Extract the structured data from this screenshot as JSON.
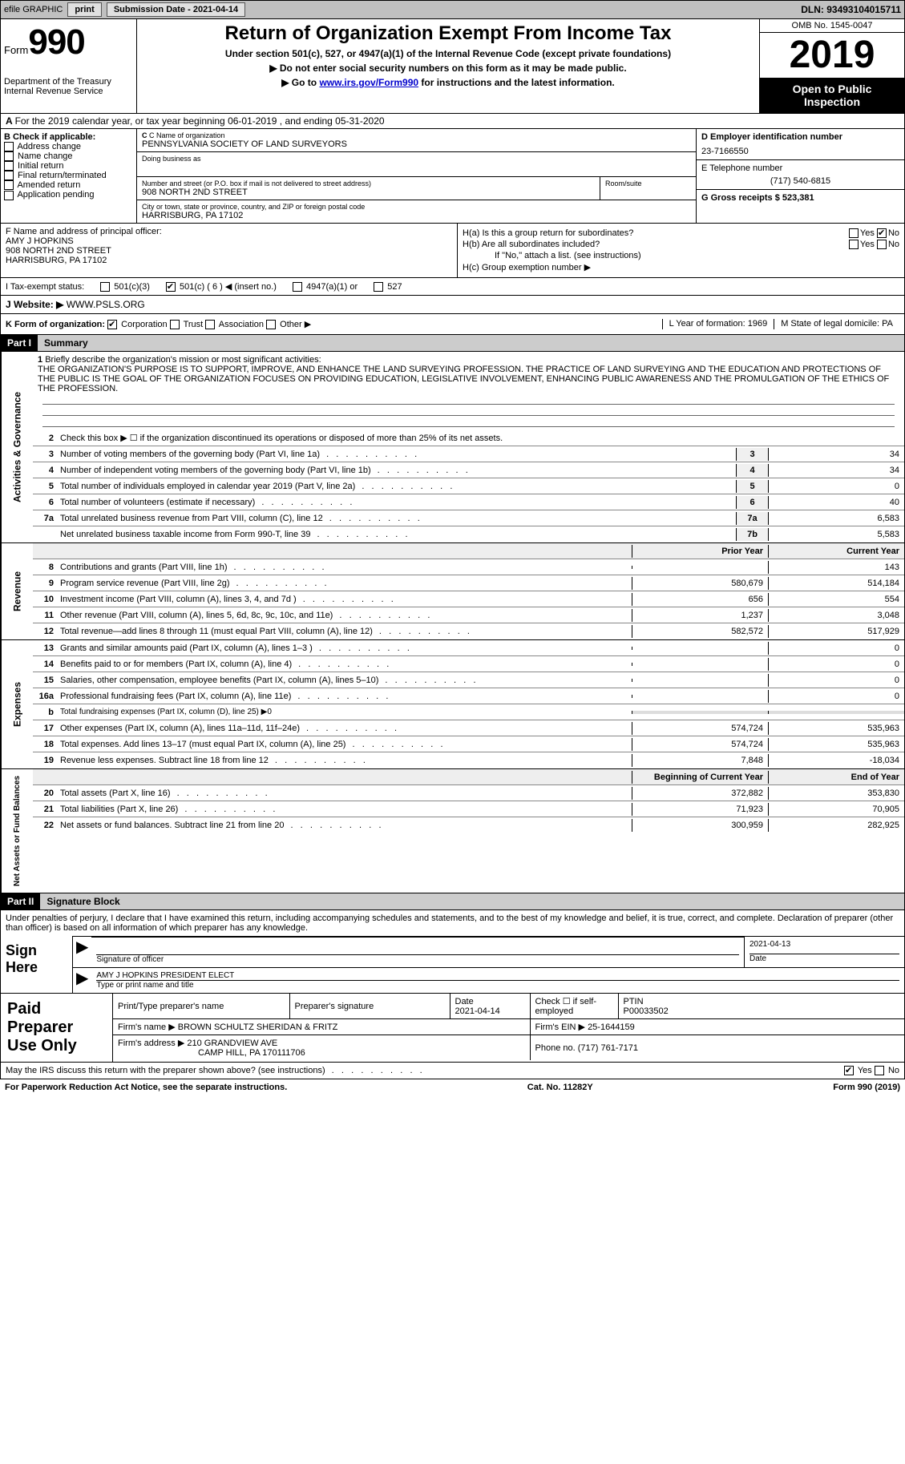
{
  "topbar": {
    "efile_label": "efile GRAPHIC",
    "print_btn": "print",
    "submission_label": "Submission Date - 2021-04-14",
    "dln_label": "DLN: 93493104015711"
  },
  "header": {
    "form_word": "Form",
    "form_num": "990",
    "dept1": "Department of the Treasury",
    "dept2": "Internal Revenue Service",
    "title": "Return of Organization Exempt From Income Tax",
    "subtitle": "Under section 501(c), 527, or 4947(a)(1) of the Internal Revenue Code (except private foundations)",
    "line1": "▶ Do not enter social security numbers on this form as it may be made public.",
    "line2_pre": "▶ Go to ",
    "line2_link": "www.irs.gov/Form990",
    "line2_post": " for instructions and the latest information.",
    "omb": "OMB No. 1545-0047",
    "year": "2019",
    "inspection1": "Open to Public",
    "inspection2": "Inspection"
  },
  "rowA": {
    "pre": "A ",
    "text": "For the 2019 calendar year, or tax year beginning 06-01-2019   , and ending 05-31-2020"
  },
  "colB": {
    "hdr": "B Check if applicable:",
    "items": [
      "Address change",
      "Name change",
      "Initial return",
      "Final return/terminated",
      "Amended return",
      "Application pending"
    ]
  },
  "colC": {
    "name_lbl": "C Name of organization",
    "name": "PENNSYLVANIA SOCIETY OF LAND SURVEYORS",
    "dba_lbl": "Doing business as",
    "addr_lbl": "Number and street (or P.O. box if mail is not delivered to street address)",
    "addr": "908 NORTH 2ND STREET",
    "room_lbl": "Room/suite",
    "city_lbl": "City or town, state or province, country, and ZIP or foreign postal code",
    "city": "HARRISBURG, PA  17102"
  },
  "colD": {
    "ein_lbl": "D Employer identification number",
    "ein": "23-7166550",
    "phone_lbl": "E Telephone number",
    "phone": "(717) 540-6815",
    "gross_lbl": "G Gross receipts $ 523,381"
  },
  "rowF": {
    "lbl": "F  Name and address of principal officer:",
    "name": "AMY J HOPKINS",
    "addr1": "908 NORTH 2ND STREET",
    "addr2": "HARRISBURG, PA  17102"
  },
  "rowH": {
    "ha": "H(a)  Is this a group return for subordinates?",
    "hb": "H(b)  Are all subordinates included?",
    "hb_note": "If \"No,\" attach a list. (see instructions)",
    "hc": "H(c)  Group exemption number ▶",
    "yes": "Yes",
    "no": "No"
  },
  "rowI": {
    "lbl": "I    Tax-exempt status:",
    "o1": "501(c)(3)",
    "o2": "501(c) ( 6 ) ◀ (insert no.)",
    "o3": "4947(a)(1) or",
    "o4": "527"
  },
  "rowJ": {
    "lbl": "J   Website: ▶ ",
    "val": "WWW.PSLS.ORG"
  },
  "rowK": {
    "lbl": "K Form of organization:",
    "o1": "Corporation",
    "o2": "Trust",
    "o3": "Association",
    "o4": "Other ▶",
    "l_lbl": "L Year of formation: 1969",
    "m_lbl": "M State of legal domicile: PA"
  },
  "part1": {
    "hdr": "Part I",
    "title": "Summary"
  },
  "brief": {
    "q1": "Briefly describe the organization's mission or most significant activities:",
    "text": "THE ORGANIZATION'S PURPOSE IS TO SUPPORT, IMPROVE, AND ENHANCE THE LAND SURVEYING PROFESSION. THE PRACTICE OF LAND SURVEYING AND THE EDUCATION AND PROTECTIONS OF THE PUBLIC IS THE GOAL OF THE ORGANIZATION FOCUSES ON PROVIDING EDUCATION, LEGISLATIVE INVOLVEMENT, ENHANCING PUBLIC AWARENESS AND THE PROMULGATION OF THE ETHICS OF THE PROFESSION.",
    "q2": "Check this box ▶ ☐  if the organization discontinued its operations or disposed of more than 25% of its net assets."
  },
  "gov_lines": [
    {
      "n": "3",
      "d": "Number of voting members of the governing body (Part VI, line 1a)",
      "c": "3",
      "v": "34"
    },
    {
      "n": "4",
      "d": "Number of independent voting members of the governing body (Part VI, line 1b)",
      "c": "4",
      "v": "34"
    },
    {
      "n": "5",
      "d": "Total number of individuals employed in calendar year 2019 (Part V, line 2a)",
      "c": "5",
      "v": "0"
    },
    {
      "n": "6",
      "d": "Total number of volunteers (estimate if necessary)",
      "c": "6",
      "v": "40"
    },
    {
      "n": "7a",
      "d": "Total unrelated business revenue from Part VIII, column (C), line 12",
      "c": "7a",
      "v": "6,583"
    },
    {
      "n": "",
      "d": "Net unrelated business taxable income from Form 990-T, line 39",
      "c": "7b",
      "v": "5,583"
    }
  ],
  "col_hdrs": {
    "prior": "Prior Year",
    "current": "Current Year"
  },
  "rev_lines": [
    {
      "n": "8",
      "d": "Contributions and grants (Part VIII, line 1h)",
      "p": "",
      "c": "143"
    },
    {
      "n": "9",
      "d": "Program service revenue (Part VIII, line 2g)",
      "p": "580,679",
      "c": "514,184"
    },
    {
      "n": "10",
      "d": "Investment income (Part VIII, column (A), lines 3, 4, and 7d )",
      "p": "656",
      "c": "554"
    },
    {
      "n": "11",
      "d": "Other revenue (Part VIII, column (A), lines 5, 6d, 8c, 9c, 10c, and 11e)",
      "p": "1,237",
      "c": "3,048"
    },
    {
      "n": "12",
      "d": "Total revenue—add lines 8 through 11 (must equal Part VIII, column (A), line 12)",
      "p": "582,572",
      "c": "517,929"
    }
  ],
  "exp_lines": [
    {
      "n": "13",
      "d": "Grants and similar amounts paid (Part IX, column (A), lines 1–3 )",
      "p": "",
      "c": "0"
    },
    {
      "n": "14",
      "d": "Benefits paid to or for members (Part IX, column (A), line 4)",
      "p": "",
      "c": "0"
    },
    {
      "n": "15",
      "d": "Salaries, other compensation, employee benefits (Part IX, column (A), lines 5–10)",
      "p": "",
      "c": "0"
    },
    {
      "n": "16a",
      "d": "Professional fundraising fees (Part IX, column (A), line 11e)",
      "p": "",
      "c": "0"
    },
    {
      "n": "b",
      "d": "Total fundraising expenses (Part IX, column (D), line 25) ▶0",
      "p": "",
      "c": ""
    },
    {
      "n": "17",
      "d": "Other expenses (Part IX, column (A), lines 11a–11d, 11f–24e)",
      "p": "574,724",
      "c": "535,963"
    },
    {
      "n": "18",
      "d": "Total expenses. Add lines 13–17 (must equal Part IX, column (A), line 25)",
      "p": "574,724",
      "c": "535,963"
    },
    {
      "n": "19",
      "d": "Revenue less expenses. Subtract line 18 from line 12",
      "p": "7,848",
      "c": "-18,034"
    }
  ],
  "na_hdr": {
    "b": "Beginning of Current Year",
    "e": "End of Year"
  },
  "na_lines": [
    {
      "n": "20",
      "d": "Total assets (Part X, line 16)",
      "p": "372,882",
      "c": "353,830"
    },
    {
      "n": "21",
      "d": "Total liabilities (Part X, line 26)",
      "p": "71,923",
      "c": "70,905"
    },
    {
      "n": "22",
      "d": "Net assets or fund balances. Subtract line 21 from line 20",
      "p": "300,959",
      "c": "282,925"
    }
  ],
  "part2": {
    "hdr": "Part II",
    "title": "Signature Block"
  },
  "sig": {
    "decl": "Under penalties of perjury, I declare that I have examined this return, including accompanying schedules and statements, and to the best of my knowledge and belief, it is true, correct, and complete. Declaration of preparer (other than officer) is based on all information of which preparer has any knowledge.",
    "sign_here": "Sign Here",
    "sig_lbl": "Signature of officer",
    "date_lbl": "Date",
    "date": "2021-04-13",
    "typed": "AMY J HOPKINS PRESIDENT ELECT",
    "typed_lbl": "Type or print name and title"
  },
  "paid": {
    "hdr": "Paid Preparer Use Only",
    "h1": "Print/Type preparer's name",
    "h2": "Preparer's signature",
    "h3_l": "Date",
    "h3": "2021-04-14",
    "h4": "Check ☐ if self-employed",
    "h5_l": "PTIN",
    "h5": "P00033502",
    "firm_lbl": "Firm's name    ▶",
    "firm": "BROWN SCHULTZ SHERIDAN & FRITZ",
    "ein_lbl": "Firm's EIN ▶",
    "ein": "25-1644159",
    "addr_lbl": "Firm's address ▶",
    "addr1": "210 GRANDVIEW AVE",
    "addr2": "CAMP HILL, PA  170111706",
    "phone_lbl": "Phone no.",
    "phone": "(717) 761-7171"
  },
  "discuss": {
    "q": "May the IRS discuss this return with the preparer shown above? (see instructions)",
    "yes": "Yes",
    "no": "No"
  },
  "footer": {
    "left": "For Paperwork Reduction Act Notice, see the separate instructions.",
    "mid": "Cat. No. 11282Y",
    "right": "Form 990 (2019)"
  },
  "vlabels": {
    "gov": "Activities & Governance",
    "rev": "Revenue",
    "exp": "Expenses",
    "na": "Net Assets or Fund Balances"
  }
}
